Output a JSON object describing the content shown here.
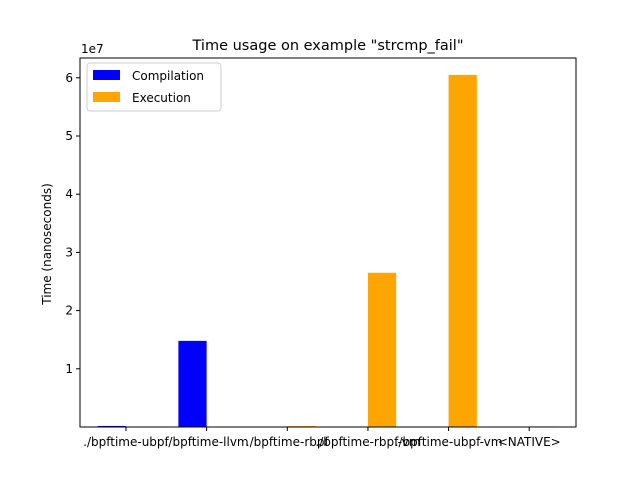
{
  "chart_data": {
    "type": "bar",
    "title": "Time usage on example \"strcmp_fail\"",
    "xlabel": "",
    "ylabel": "Time (nanoseconds)",
    "y_offset_label": "1e7",
    "ylim": [
      0,
      63400000
    ],
    "yticks": [
      1,
      2,
      3,
      4,
      5,
      6
    ],
    "y_tick_scale": 10000000,
    "categories": [
      "./bpftime-ubpf",
      "./bpftime-llvm",
      "./bpftime-rbpf",
      "./bpftime-rbpf-vm",
      "./bpftime-ubpf-vm",
      "<NATIVE>"
    ],
    "series": [
      {
        "name": "Compilation",
        "color": "#0000ff",
        "values": [
          180000,
          14800000,
          0,
          0,
          0,
          0
        ]
      },
      {
        "name": "Execution",
        "color": "#ffa500",
        "values": [
          60000,
          80000,
          150000,
          26500000,
          60500000,
          100000
        ]
      }
    ],
    "legend_position": "upper-left",
    "grid": false
  }
}
